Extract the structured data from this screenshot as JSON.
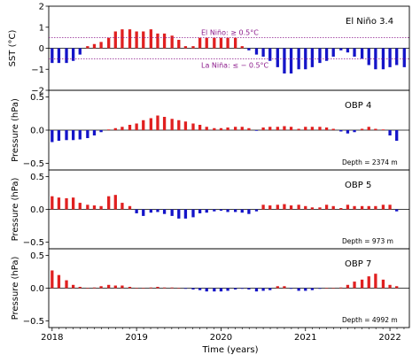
{
  "figure": {
    "xlabel": "Time (years)",
    "x_ticks": [
      "2018",
      "2019",
      "2020",
      "2021",
      "2022"
    ]
  },
  "chart_data": [
    {
      "type": "bar",
      "title": "El Niño 3.4",
      "ylabel": "SST (°C)",
      "ylim": [
        -2,
        2
      ],
      "yticks": [
        "2",
        "1",
        "0",
        "−1",
        "−2"
      ],
      "ytick_values": [
        2,
        1,
        0,
        -1,
        -2
      ],
      "positive_color": "#e02020",
      "negative_color": "#1414c8",
      "threshold_color": "#8b1a8b",
      "thresholds": [
        {
          "value": 0.5,
          "label": "El Niño: ≥ 0.5°C"
        },
        {
          "value": -0.5,
          "label": "La Niña: ≤ − 0.5°C"
        }
      ],
      "x": [
        2018.0,
        2018.08,
        2018.17,
        2018.25,
        2018.33,
        2018.42,
        2018.5,
        2018.58,
        2018.67,
        2018.75,
        2018.83,
        2018.92,
        2019.0,
        2019.08,
        2019.17,
        2019.25,
        2019.33,
        2019.42,
        2019.5,
        2019.58,
        2019.67,
        2019.75,
        2019.83,
        2019.92,
        2020.0,
        2020.08,
        2020.17,
        2020.25,
        2020.33,
        2020.42,
        2020.5,
        2020.58,
        2020.67,
        2020.75,
        2020.83,
        2020.92,
        2021.0,
        2021.08,
        2021.17,
        2021.25,
        2021.33,
        2021.42,
        2021.5,
        2021.58,
        2021.67,
        2021.75,
        2021.83,
        2021.92,
        2022.0,
        2022.08,
        2022.17
      ],
      "values": [
        -0.7,
        -0.7,
        -0.7,
        -0.6,
        -0.3,
        0.1,
        0.2,
        0.3,
        0.5,
        0.8,
        0.9,
        0.9,
        0.8,
        0.8,
        0.9,
        0.7,
        0.7,
        0.6,
        0.4,
        0.1,
        0.1,
        0.5,
        0.5,
        0.5,
        0.5,
        0.5,
        0.5,
        0.1,
        -0.1,
        -0.3,
        -0.4,
        -0.6,
        -0.9,
        -1.2,
        -1.2,
        -1.0,
        -1.0,
        -0.9,
        -0.7,
        -0.6,
        -0.4,
        -0.1,
        -0.2,
        -0.4,
        -0.5,
        -0.8,
        -1.0,
        -1.0,
        -0.9,
        -0.8,
        -0.9
      ]
    },
    {
      "type": "bar",
      "title": "OBP 4",
      "ylabel": "Pressure (hPa)",
      "annotation": "Depth = 2374 m",
      "ylim": [
        -0.6,
        0.6
      ],
      "yticks": [
        "0.5",
        "0.0",
        "−0.5"
      ],
      "ytick_values": [
        0.5,
        0.0,
        -0.5
      ],
      "positive_color": "#e02020",
      "negative_color": "#1414c8",
      "x": [
        2018.0,
        2018.08,
        2018.17,
        2018.25,
        2018.33,
        2018.42,
        2018.5,
        2018.58,
        2018.67,
        2018.75,
        2018.83,
        2018.92,
        2019.0,
        2019.08,
        2019.17,
        2019.25,
        2019.33,
        2019.42,
        2019.5,
        2019.58,
        2019.67,
        2019.75,
        2019.83,
        2019.92,
        2020.0,
        2020.08,
        2020.17,
        2020.25,
        2020.33,
        2020.42,
        2020.5,
        2020.58,
        2020.67,
        2020.75,
        2020.83,
        2020.92,
        2021.0,
        2021.08,
        2021.17,
        2021.25,
        2021.33,
        2021.42,
        2021.5,
        2021.58,
        2021.67,
        2021.75,
        2021.83,
        2021.92,
        2022.0,
        2022.08
      ],
      "values": [
        -0.18,
        -0.16,
        -0.15,
        -0.15,
        -0.14,
        -0.12,
        -0.08,
        -0.03,
        0.01,
        0.03,
        0.05,
        0.08,
        0.1,
        0.15,
        0.18,
        0.22,
        0.2,
        0.17,
        0.15,
        0.13,
        0.1,
        0.08,
        0.05,
        0.03,
        0.03,
        0.04,
        0.05,
        0.05,
        0.03,
        -0.01,
        0.04,
        0.05,
        0.05,
        0.06,
        0.05,
        0.02,
        0.05,
        0.05,
        0.05,
        0.04,
        0.02,
        -0.02,
        -0.05,
        -0.03,
        0.02,
        0.05,
        0.02,
        0.01,
        -0.08,
        -0.16
      ]
    },
    {
      "type": "bar",
      "title": "OBP 5",
      "ylabel": "Pressure (hPa)",
      "annotation": "Depth = 973 m",
      "ylim": [
        -0.6,
        0.6
      ],
      "yticks": [
        "0.5",
        "0.0",
        "−0.5"
      ],
      "ytick_values": [
        0.5,
        0.0,
        -0.5
      ],
      "positive_color": "#e02020",
      "negative_color": "#1414c8",
      "x": [
        2018.0,
        2018.08,
        2018.17,
        2018.25,
        2018.33,
        2018.42,
        2018.5,
        2018.58,
        2018.67,
        2018.75,
        2018.83,
        2018.92,
        2019.0,
        2019.08,
        2019.17,
        2019.25,
        2019.33,
        2019.42,
        2019.5,
        2019.58,
        2019.67,
        2019.75,
        2019.83,
        2019.92,
        2020.0,
        2020.08,
        2020.17,
        2020.25,
        2020.33,
        2020.42,
        2020.5,
        2020.58,
        2020.67,
        2020.75,
        2020.83,
        2020.92,
        2021.0,
        2021.08,
        2021.17,
        2021.25,
        2021.33,
        2021.42,
        2021.5,
        2021.58,
        2021.67,
        2021.75,
        2021.83,
        2021.92,
        2022.0,
        2022.08
      ],
      "values": [
        0.2,
        0.18,
        0.17,
        0.18,
        0.1,
        0.07,
        0.06,
        0.05,
        0.2,
        0.22,
        0.1,
        0.05,
        -0.06,
        -0.1,
        -0.05,
        -0.04,
        -0.07,
        -0.1,
        -0.14,
        -0.14,
        -0.12,
        -0.06,
        -0.05,
        -0.03,
        -0.02,
        -0.04,
        -0.04,
        -0.05,
        -0.07,
        -0.03,
        0.07,
        0.06,
        0.07,
        0.08,
        0.06,
        0.07,
        0.05,
        0.03,
        0.03,
        0.07,
        0.05,
        0.02,
        0.07,
        0.05,
        0.05,
        0.05,
        0.05,
        0.07,
        0.07,
        -0.03
      ]
    },
    {
      "type": "bar",
      "title": "OBP 7",
      "ylabel": "Pressure (hPa)",
      "annotation": "Depth = 4992 m",
      "ylim": [
        -0.6,
        0.6
      ],
      "yticks": [
        "0.5",
        "0.0",
        "−0.5"
      ],
      "ytick_values": [
        0.5,
        0.0,
        -0.5
      ],
      "positive_color": "#e02020",
      "negative_color": "#1414c8",
      "x": [
        2018.0,
        2018.08,
        2018.17,
        2018.25,
        2018.33,
        2018.42,
        2018.5,
        2018.58,
        2018.67,
        2018.75,
        2018.83,
        2018.92,
        2019.0,
        2019.08,
        2019.17,
        2019.25,
        2019.33,
        2019.42,
        2019.5,
        2019.58,
        2019.67,
        2019.75,
        2019.83,
        2019.92,
        2020.0,
        2020.08,
        2020.17,
        2020.25,
        2020.33,
        2020.42,
        2020.5,
        2020.58,
        2020.67,
        2020.75,
        2020.83,
        2020.92,
        2021.0,
        2021.08,
        2021.17,
        2021.25,
        2021.33,
        2021.42,
        2021.5,
        2021.58,
        2021.67,
        2021.75,
        2021.83,
        2021.92,
        2022.0,
        2022.08
      ],
      "values": [
        0.27,
        0.2,
        0.12,
        0.05,
        0.02,
        0.0,
        0.01,
        0.03,
        0.05,
        0.04,
        0.04,
        0.02,
        0.0,
        0.0,
        0.01,
        0.02,
        0.01,
        0.01,
        0.0,
        -0.01,
        -0.02,
        -0.03,
        -0.05,
        -0.05,
        -0.05,
        -0.04,
        -0.02,
        -0.01,
        -0.02,
        -0.05,
        -0.04,
        -0.03,
        0.03,
        0.03,
        -0.01,
        -0.04,
        -0.04,
        -0.03,
        -0.01,
        0.0,
        0.0,
        0.01,
        0.05,
        0.1,
        0.13,
        0.18,
        0.22,
        0.13,
        0.05,
        0.03
      ]
    }
  ]
}
